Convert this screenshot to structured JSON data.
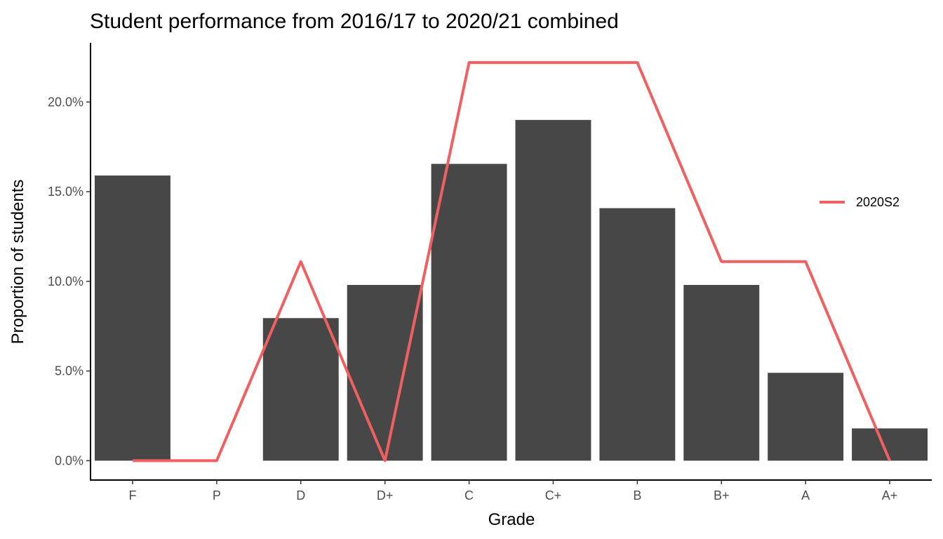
{
  "chart_data": {
    "type": "bar",
    "title": "Student performance from 2016/17 to 2020/21 combined",
    "xlabel": "Grade",
    "ylabel": "Proportion of students",
    "categories": [
      "F",
      "P",
      "D",
      "D+",
      "C",
      "C+",
      "B",
      "B+",
      "A",
      "A+"
    ],
    "y_ticks": [
      {
        "value": 0.0,
        "label": "0.0%"
      },
      {
        "value": 0.05,
        "label": "5.0%"
      },
      {
        "value": 0.1,
        "label": "10.0%"
      },
      {
        "value": 0.15,
        "label": "15.0%"
      },
      {
        "value": 0.2,
        "label": "20.0%"
      }
    ],
    "ylim": [
      -0.0108,
      0.233
    ],
    "grid": false,
    "bar_color": "#474747",
    "bars": [
      0.159,
      0.0,
      0.0795,
      0.098,
      0.1655,
      0.19,
      0.1408,
      0.098,
      0.049,
      0.018
    ],
    "series": [
      {
        "name": "2020S2",
        "type": "line",
        "color": "#f06060",
        "values": [
          0.0,
          0.0,
          0.111,
          0.0,
          0.222,
          0.222,
          0.222,
          0.111,
          0.111,
          0.0
        ]
      }
    ],
    "legend_position": "right"
  }
}
